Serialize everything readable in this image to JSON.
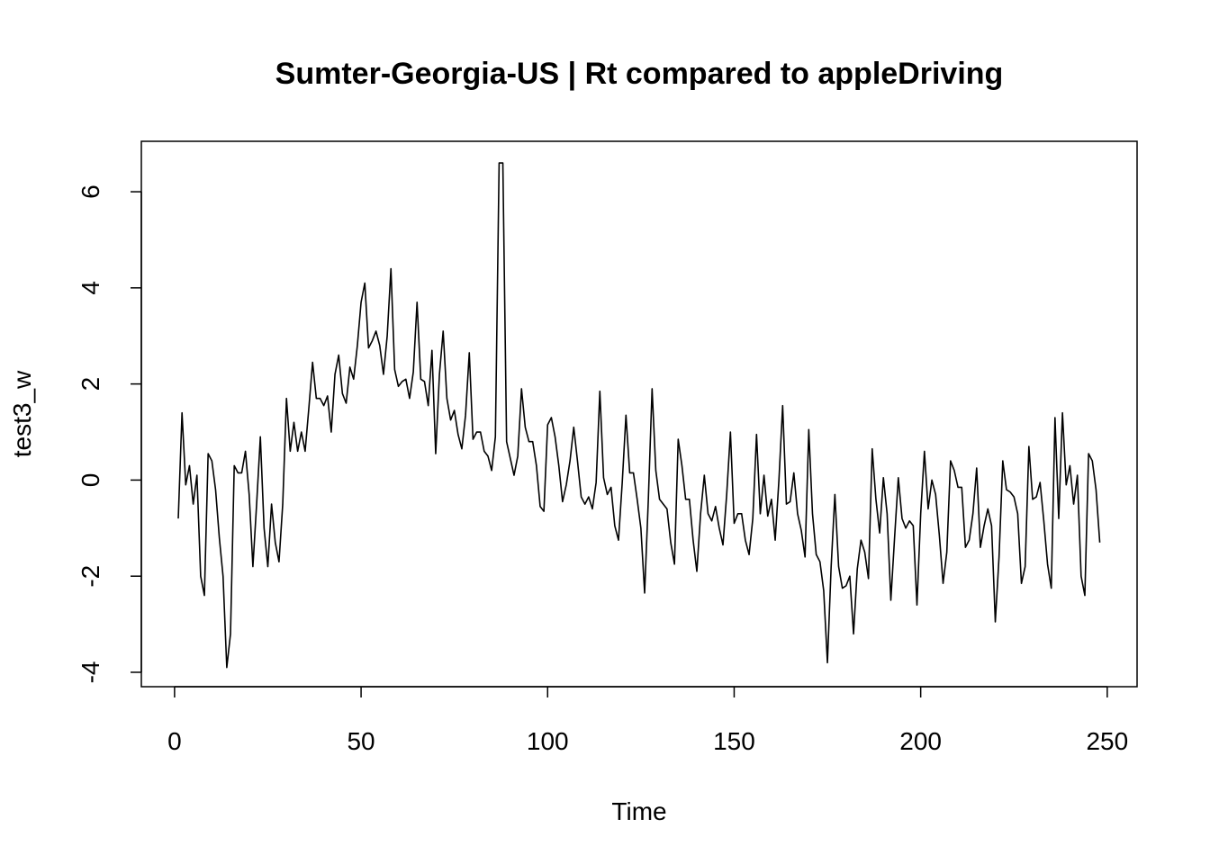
{
  "chart_data": {
    "type": "line",
    "title": "Sumter-Georgia-US | Rt compared to appleDriving",
    "xlabel": "Time",
    "ylabel": "test3_w",
    "xlim": [
      -8.9,
      258
    ],
    "ylim": [
      -4.3,
      7.05
    ],
    "x_ticks": [
      0,
      50,
      100,
      150,
      200,
      250
    ],
    "y_ticks": [
      -4,
      -2,
      0,
      2,
      4,
      6
    ],
    "grid": false,
    "line_color": "#000000",
    "series": [
      {
        "x_start": 1,
        "x_step": 1,
        "values": [
          -0.8,
          1.4,
          -0.1,
          0.3,
          -0.5,
          0.1,
          -2.0,
          -2.4,
          0.55,
          0.4,
          -0.2,
          -1.2,
          -2.0,
          -3.9,
          -3.2,
          0.3,
          0.15,
          0.15,
          0.6,
          -0.3,
          -1.8,
          -0.5,
          0.9,
          -1.0,
          -1.8,
          -0.5,
          -1.3,
          -1.7,
          -0.5,
          1.7,
          0.6,
          1.2,
          0.6,
          1.0,
          0.6,
          1.5,
          2.45,
          1.7,
          1.7,
          1.55,
          1.75,
          1.0,
          2.2,
          2.6,
          1.8,
          1.6,
          2.35,
          2.1,
          2.8,
          3.7,
          4.1,
          2.75,
          2.9,
          3.1,
          2.8,
          2.2,
          3.0,
          4.4,
          2.3,
          1.95,
          2.05,
          2.1,
          1.7,
          2.25,
          3.7,
          2.1,
          2.05,
          1.55,
          2.7,
          0.55,
          2.2,
          3.1,
          1.7,
          1.25,
          1.45,
          0.95,
          0.65,
          1.35,
          2.65,
          0.85,
          1.0,
          1.0,
          0.6,
          0.5,
          0.2,
          0.9,
          6.6,
          6.6,
          0.8,
          0.45,
          0.1,
          0.5,
          1.9,
          1.1,
          0.8,
          0.8,
          0.3,
          -0.55,
          -0.65,
          1.15,
          1.3,
          0.9,
          0.3,
          -0.45,
          -0.1,
          0.4,
          1.1,
          0.4,
          -0.35,
          -0.5,
          -0.35,
          -0.6,
          -0.05,
          1.85,
          0.05,
          -0.3,
          -0.15,
          -0.95,
          -1.25,
          -0.05,
          1.35,
          0.15,
          0.15,
          -0.4,
          -1.0,
          -2.35,
          -0.4,
          1.9,
          0.2,
          -0.4,
          -0.5,
          -0.6,
          -1.3,
          -1.75,
          0.85,
          0.3,
          -0.4,
          -0.4,
          -1.25,
          -1.9,
          -0.7,
          0.1,
          -0.7,
          -0.85,
          -0.55,
          -1.0,
          -1.35,
          -0.3,
          1.0,
          -0.9,
          -0.7,
          -0.7,
          -1.25,
          -1.55,
          -0.8,
          0.95,
          -0.7,
          0.1,
          -0.75,
          -0.4,
          -1.25,
          0.0,
          1.55,
          -0.5,
          -0.45,
          0.15,
          -0.7,
          -1.05,
          -1.6,
          1.05,
          -0.7,
          -1.55,
          -1.7,
          -2.3,
          -3.8,
          -1.8,
          -0.3,
          -1.8,
          -2.25,
          -2.2,
          -2.0,
          -3.2,
          -1.85,
          -1.25,
          -1.5,
          -2.05,
          0.65,
          -0.4,
          -1.1,
          0.05,
          -0.7,
          -2.5,
          -1.2,
          0.05,
          -0.8,
          -1.0,
          -0.85,
          -0.95,
          -2.6,
          -0.7,
          0.6,
          -0.6,
          0.0,
          -0.3,
          -1.15,
          -2.15,
          -1.5,
          0.4,
          0.2,
          -0.15,
          -0.15,
          -1.4,
          -1.25,
          -0.7,
          0.25,
          -1.4,
          -0.95,
          -0.6,
          -0.95,
          -2.95,
          -1.6,
          0.4,
          -0.2,
          -0.25,
          -0.35,
          -0.7,
          -2.15,
          -1.8,
          0.7,
          -0.4,
          -0.35,
          -0.05,
          -0.85,
          -1.75,
          -2.25,
          1.3,
          -0.8,
          1.4,
          -0.1,
          0.3,
          -0.5,
          0.1,
          -2.0,
          -2.4,
          0.55,
          0.4,
          -0.2,
          -1.3
        ]
      }
    ]
  }
}
